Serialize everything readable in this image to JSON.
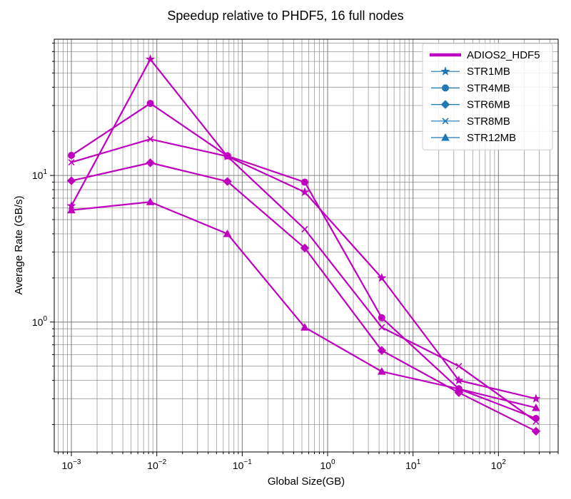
{
  "chart_data": {
    "type": "line",
    "title": "Speedup relative to PHDF5, 16 full nodes",
    "xlabel": "Global Size(GB)",
    "ylabel": "Average Rate (GB/s)",
    "xscale": "log",
    "yscale": "log",
    "xlim": [
      0.00063,
      500
    ],
    "ylim": [
      0.13,
      85
    ],
    "grid": "both major and minor",
    "legend_position": "top-right",
    "x_tick_labels": [
      "10^-3",
      "10^-2",
      "10^-1",
      "10^0",
      "10^1",
      "10^2"
    ],
    "y_tick_labels": [
      "10^0",
      "10^1"
    ],
    "x": [
      0.001,
      0.0084,
      0.067,
      0.54,
      4.3,
      34.4,
      275
    ],
    "line_color": "#bf00bf",
    "legend": [
      {
        "label": "ADIOS2_HDF5",
        "marker": "none",
        "color": "#bf00bf",
        "style": "thick"
      },
      {
        "label": "STR1MB",
        "marker": "star",
        "color": "#1f77b4"
      },
      {
        "label": "STR4MB",
        "marker": "circle",
        "color": "#1f77b4"
      },
      {
        "label": "STR6MB",
        "marker": "diamond",
        "color": "#1f77b4"
      },
      {
        "label": "STR8MB",
        "marker": "x",
        "color": "#1f77b4"
      },
      {
        "label": "STR12MB",
        "marker": "triangle",
        "color": "#1f77b4"
      }
    ],
    "series": [
      {
        "name": "STR1MB",
        "marker": "star",
        "values": [
          6.2,
          62,
          13.5,
          7.7,
          2.0,
          0.4,
          0.3
        ]
      },
      {
        "name": "STR4MB",
        "marker": "circle",
        "values": [
          13.7,
          31,
          13.6,
          9.0,
          1.07,
          0.35,
          0.22
        ]
      },
      {
        "name": "STR6MB",
        "marker": "diamond",
        "values": [
          9.2,
          12.2,
          9.1,
          3.2,
          0.64,
          0.33,
          0.18
        ]
      },
      {
        "name": "STR8MB",
        "marker": "x",
        "values": [
          12.3,
          17.7,
          13.5,
          4.3,
          0.92,
          0.5,
          0.21
        ]
      },
      {
        "name": "STR12MB",
        "marker": "triangle",
        "values": [
          5.8,
          6.6,
          4.0,
          0.92,
          0.46,
          0.35,
          0.26
        ]
      }
    ]
  }
}
